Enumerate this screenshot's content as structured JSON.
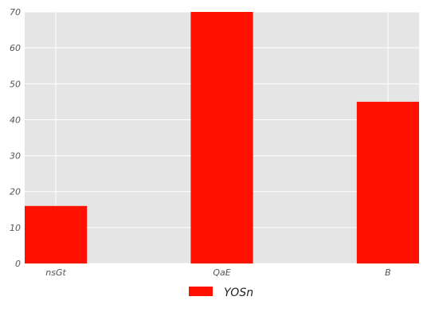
{
  "chart_data": {
    "type": "bar",
    "categories": [
      "nsGt",
      "QaE",
      "B"
    ],
    "series": [
      {
        "name": "YOSn",
        "values": [
          16,
          70,
          45
        ],
        "color": "#ff1100"
      }
    ],
    "ylim": [
      0,
      70
    ],
    "yticks": [
      0,
      10,
      20,
      30,
      40,
      50,
      60,
      70
    ],
    "grid": true,
    "legend": "bottom-center",
    "background": "#e5e5e5",
    "gridline_color": "#ffffff"
  }
}
